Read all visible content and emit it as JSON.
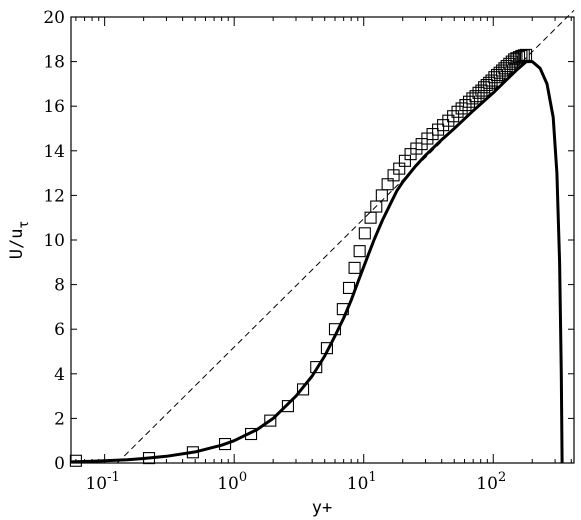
{
  "chart_data": {
    "type": "line",
    "xscale": "log",
    "xlim": [
      0.055,
      420
    ],
    "ylim": [
      0,
      20
    ],
    "xlabel": "y+",
    "ylabel": "U/u_τ",
    "ylabel_parts": {
      "main": "U/u",
      "sub": "τ"
    },
    "grid": false,
    "legend": "none",
    "x_ticks": [
      {
        "base": "10",
        "exp": "-1",
        "value": 0.1
      },
      {
        "base": "10",
        "exp": "0",
        "value": 1
      },
      {
        "base": "10",
        "exp": "1",
        "value": 10
      },
      {
        "base": "10",
        "exp": "2",
        "value": 100
      }
    ],
    "y_ticks": [
      0,
      2,
      4,
      6,
      8,
      10,
      12,
      14,
      16,
      18,
      20
    ],
    "series": [
      {
        "style": "solid",
        "color": "#000000",
        "x": [
          0.055,
          0.08,
          0.1,
          0.15,
          0.2,
          0.3,
          0.5,
          0.8,
          1.0,
          1.5,
          2.0,
          3.0,
          4.0,
          5.0,
          6.0,
          7.0,
          8.0,
          9.0,
          10.0,
          12.0,
          14.0,
          16.0,
          18.0,
          20.0,
          25.0,
          30.0,
          40.0,
          50.0,
          70.0,
          100.0,
          150.0,
          180.0,
          200.0,
          230.0,
          260.0,
          290.0,
          310.0,
          325.0,
          335.0,
          340.0
        ],
        "y": [
          0.05,
          0.08,
          0.1,
          0.15,
          0.2,
          0.3,
          0.5,
          0.8,
          1.0,
          1.5,
          2.0,
          3.0,
          3.9,
          4.8,
          5.7,
          6.5,
          7.3,
          8.1,
          8.8,
          10.0,
          10.9,
          11.6,
          12.2,
          12.6,
          13.3,
          13.8,
          14.5,
          15.0,
          15.8,
          16.6,
          17.6,
          18.0,
          18.0,
          17.7,
          17.0,
          15.5,
          13.0,
          9.0,
          4.0,
          0.0
        ]
      },
      {
        "style": "dashed",
        "color": "#000000",
        "x": [
          0.125,
          420
        ],
        "y": [
          0.0,
          20.3
        ]
      },
      {
        "style": "square-markers",
        "color": "#000000",
        "x": [
          0.06,
          0.22,
          0.48,
          0.85,
          1.35,
          1.9,
          2.6,
          3.4,
          4.3,
          5.2,
          6.0,
          6.9,
          7.7,
          8.5,
          9.3,
          10.2,
          11.3,
          12.5,
          13.8,
          15.3,
          17.0,
          18.8,
          20.8,
          23.0,
          25.5,
          28.0,
          31.0,
          34.0,
          37.5,
          41.0,
          45.0,
          49.0,
          53.0,
          57.0,
          61.0,
          65.0,
          69.0,
          73.0,
          77.0,
          81.0,
          85.0,
          89.0,
          93.0,
          97.0,
          102.0,
          107.0,
          112.0,
          117.0,
          122.0,
          127.0,
          133.0,
          139.0,
          145.0,
          151.0,
          158.0,
          165.0,
          172.0,
          179.0
        ],
        "y": [
          0.1,
          0.22,
          0.48,
          0.85,
          1.3,
          1.9,
          2.55,
          3.3,
          4.3,
          5.15,
          6.0,
          6.9,
          7.85,
          8.75,
          9.5,
          10.3,
          11.0,
          11.5,
          12.0,
          12.5,
          12.9,
          13.2,
          13.55,
          13.85,
          14.1,
          14.3,
          14.55,
          14.75,
          14.95,
          15.15,
          15.35,
          15.55,
          15.75,
          15.9,
          16.05,
          16.2,
          16.35,
          16.45,
          16.6,
          16.7,
          16.85,
          16.95,
          17.05,
          17.15,
          17.3,
          17.4,
          17.5,
          17.6,
          17.7,
          17.8,
          17.9,
          18.0,
          18.1,
          18.15,
          18.2,
          18.25,
          18.28,
          18.3
        ]
      }
    ]
  }
}
